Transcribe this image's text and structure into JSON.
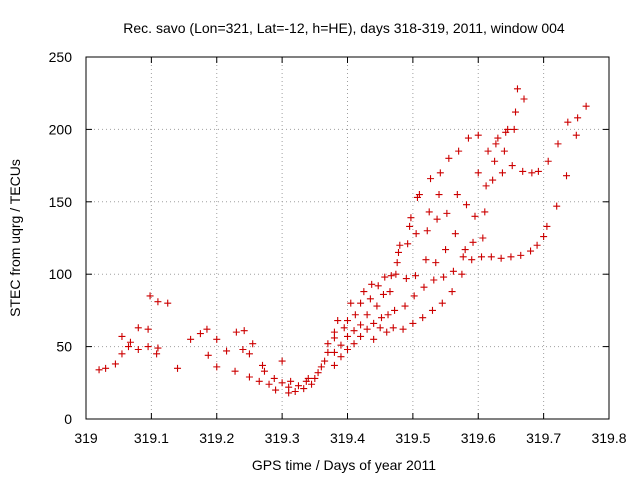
{
  "chart_data": {
    "type": "scatter",
    "title": "Rec. savo (Lon=321, Lat=-12, h=HE), days 318-319, 2011, window 004",
    "xlabel": "GPS time / Days of year 2011",
    "ylabel": "STEC from uqrg / TECUs",
    "xlim": [
      319,
      319.8
    ],
    "ylim": [
      0,
      250
    ],
    "x_ticks": [
      "319",
      "319.1",
      "319.2",
      "319.3",
      "319.4",
      "319.5",
      "319.6",
      "319.7",
      "319.8"
    ],
    "y_ticks": [
      "0",
      "50",
      "100",
      "150",
      "200",
      "250"
    ],
    "grid": true,
    "marker": "+",
    "color": "#cc0000",
    "points": [
      [
        319.02,
        34
      ],
      [
        319.03,
        35
      ],
      [
        319.045,
        38
      ],
      [
        319.055,
        45
      ],
      [
        319.055,
        57
      ],
      [
        319.065,
        50
      ],
      [
        319.068,
        53
      ],
      [
        319.08,
        48
      ],
      [
        319.08,
        63
      ],
      [
        319.095,
        50
      ],
      [
        319.095,
        62
      ],
      [
        319.098,
        85
      ],
      [
        319.108,
        45
      ],
      [
        319.11,
        49
      ],
      [
        319.11,
        81
      ],
      [
        319.125,
        80
      ],
      [
        319.14,
        35
      ],
      [
        319.16,
        55
      ],
      [
        319.175,
        59
      ],
      [
        319.185,
        62
      ],
      [
        319.187,
        44
      ],
      [
        319.2,
        55
      ],
      [
        319.2,
        36
      ],
      [
        319.215,
        47
      ],
      [
        319.228,
        33
      ],
      [
        319.23,
        60
      ],
      [
        319.24,
        48
      ],
      [
        319.242,
        61
      ],
      [
        319.25,
        29
      ],
      [
        319.25,
        45
      ],
      [
        319.255,
        52
      ],
      [
        319.265,
        26
      ],
      [
        319.27,
        37
      ],
      [
        319.273,
        33
      ],
      [
        319.28,
        24
      ],
      [
        319.288,
        28
      ],
      [
        319.29,
        20
      ],
      [
        319.3,
        25
      ],
      [
        319.3,
        40
      ],
      [
        319.31,
        18
      ],
      [
        319.31,
        22
      ],
      [
        319.313,
        26
      ],
      [
        319.32,
        19
      ],
      [
        319.325,
        23
      ],
      [
        319.333,
        21
      ],
      [
        319.337,
        26
      ],
      [
        319.34,
        28
      ],
      [
        319.345,
        24
      ],
      [
        319.35,
        28
      ],
      [
        319.355,
        32
      ],
      [
        319.36,
        36
      ],
      [
        319.365,
        40
      ],
      [
        319.37,
        46
      ],
      [
        319.37,
        52
      ],
      [
        319.38,
        37
      ],
      [
        319.38,
        46
      ],
      [
        319.38,
        56
      ],
      [
        319.38,
        60
      ],
      [
        319.385,
        68
      ],
      [
        319.39,
        43
      ],
      [
        319.39,
        51
      ],
      [
        319.395,
        63
      ],
      [
        319.4,
        48
      ],
      [
        319.4,
        57
      ],
      [
        319.4,
        68
      ],
      [
        319.405,
        80
      ],
      [
        319.41,
        52
      ],
      [
        319.41,
        61
      ],
      [
        319.412,
        72
      ],
      [
        319.42,
        57
      ],
      [
        319.42,
        65
      ],
      [
        319.42,
        80
      ],
      [
        319.425,
        88
      ],
      [
        319.43,
        62
      ],
      [
        319.43,
        72
      ],
      [
        319.435,
        83
      ],
      [
        319.437,
        93
      ],
      [
        319.44,
        55
      ],
      [
        319.44,
        66
      ],
      [
        319.445,
        78
      ],
      [
        319.447,
        92
      ],
      [
        319.45,
        63
      ],
      [
        319.452,
        70
      ],
      [
        319.455,
        86
      ],
      [
        319.457,
        98
      ],
      [
        319.46,
        60
      ],
      [
        319.462,
        72
      ],
      [
        319.465,
        88
      ],
      [
        319.467,
        99
      ],
      [
        319.47,
        63
      ],
      [
        319.472,
        75
      ],
      [
        319.474,
        100
      ],
      [
        319.476,
        108
      ],
      [
        319.478,
        115
      ],
      [
        319.48,
        120
      ],
      [
        319.485,
        62
      ],
      [
        319.488,
        78
      ],
      [
        319.49,
        97
      ],
      [
        319.492,
        121
      ],
      [
        319.495,
        133
      ],
      [
        319.497,
        139
      ],
      [
        319.5,
        66
      ],
      [
        319.502,
        85
      ],
      [
        319.504,
        99
      ],
      [
        319.505,
        128
      ],
      [
        319.507,
        153
      ],
      [
        319.51,
        155
      ],
      [
        319.515,
        70
      ],
      [
        319.517,
        91
      ],
      [
        319.52,
        110
      ],
      [
        319.522,
        130
      ],
      [
        319.525,
        143
      ],
      [
        319.527,
        166
      ],
      [
        319.53,
        75
      ],
      [
        319.532,
        96
      ],
      [
        319.535,
        108
      ],
      [
        319.537,
        138
      ],
      [
        319.54,
        155
      ],
      [
        319.542,
        170
      ],
      [
        319.545,
        80
      ],
      [
        319.547,
        98
      ],
      [
        319.55,
        117
      ],
      [
        319.552,
        142
      ],
      [
        319.555,
        180
      ],
      [
        319.56,
        88
      ],
      [
        319.562,
        102
      ],
      [
        319.565,
        128
      ],
      [
        319.568,
        155
      ],
      [
        319.57,
        185
      ],
      [
        319.575,
        100
      ],
      [
        319.577,
        112
      ],
      [
        319.58,
        117
      ],
      [
        319.582,
        148
      ],
      [
        319.585,
        194
      ],
      [
        319.59,
        110
      ],
      [
        319.592,
        122
      ],
      [
        319.595,
        140
      ],
      [
        319.6,
        170
      ],
      [
        319.6,
        196
      ],
      [
        319.605,
        112
      ],
      [
        319.607,
        125
      ],
      [
        319.61,
        143
      ],
      [
        319.612,
        161
      ],
      [
        319.615,
        185
      ],
      [
        319.62,
        112
      ],
      [
        319.622,
        165
      ],
      [
        319.625,
        178
      ],
      [
        319.627,
        190
      ],
      [
        319.63,
        194
      ],
      [
        319.635,
        111
      ],
      [
        319.637,
        170
      ],
      [
        319.64,
        185
      ],
      [
        319.642,
        198
      ],
      [
        319.645,
        200
      ],
      [
        319.65,
        112
      ],
      [
        319.652,
        175
      ],
      [
        319.655,
        200
      ],
      [
        319.657,
        212
      ],
      [
        319.66,
        228
      ],
      [
        319.665,
        113
      ],
      [
        319.668,
        171
      ],
      [
        319.67,
        221
      ],
      [
        319.68,
        116
      ],
      [
        319.682,
        170
      ],
      [
        319.69,
        120
      ],
      [
        319.692,
        171
      ],
      [
        319.7,
        126
      ],
      [
        319.705,
        133
      ],
      [
        319.707,
        178
      ],
      [
        319.72,
        147
      ],
      [
        319.722,
        190
      ],
      [
        319.735,
        168
      ],
      [
        319.737,
        205
      ],
      [
        319.75,
        196
      ],
      [
        319.752,
        208
      ],
      [
        319.765,
        216
      ]
    ]
  }
}
